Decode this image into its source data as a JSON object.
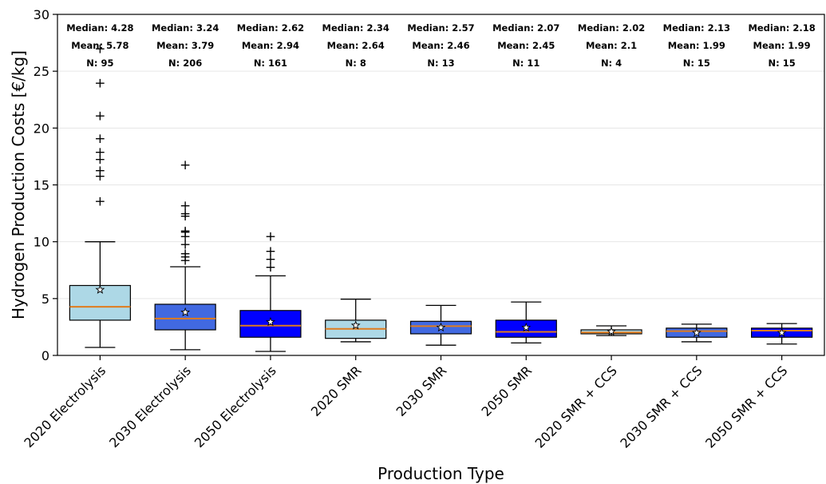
{
  "chart_data": {
    "type": "box",
    "title": "",
    "xlabel": "Production Type",
    "ylabel": "Hydrogen Production Costs [€/kg]",
    "ylim": [
      0,
      30
    ],
    "yticks": [
      0,
      5,
      10,
      15,
      20,
      25,
      30
    ],
    "grid": "horizontal",
    "stat_prefixes": {
      "median": "Median: ",
      "mean": "Mean: ",
      "n": "N: "
    },
    "categories": [
      "2020 Electrolysis",
      "2030 Electrolysis",
      "2050 Electrolysis",
      "2020 SMR",
      "2030 SMR",
      "2050 SMR",
      "2020 SMR + CCS",
      "2030 SMR + CCS",
      "2050 SMR + CCS"
    ],
    "colors": [
      "#add8e6",
      "#4169e1",
      "#0000ff",
      "#add8e6",
      "#4169e1",
      "#0000ff",
      "#add8e6",
      "#4169e1",
      "#0000ff"
    ],
    "median_color": "#e07b1d",
    "boxes": [
      {
        "median": 4.28,
        "mean": 5.78,
        "n": 95,
        "q1": 3.1,
        "q3": 6.15,
        "whisker_low": 0.7,
        "whisker_high": 10.0,
        "outliers": [
          13.6,
          15.8,
          16.3,
          17.3,
          17.9,
          19.1,
          21.1,
          24.0,
          27.0
        ]
      },
      {
        "median": 3.24,
        "mean": 3.79,
        "n": 206,
        "q1": 2.25,
        "q3": 4.5,
        "whisker_low": 0.5,
        "whisker_high": 7.8,
        "outliers": [
          8.4,
          8.7,
          9.0,
          9.8,
          10.5,
          10.9,
          11.0,
          12.3,
          12.5,
          13.2,
          16.8
        ]
      },
      {
        "median": 2.62,
        "mean": 2.94,
        "n": 161,
        "q1": 1.6,
        "q3": 3.95,
        "whisker_low": 0.35,
        "whisker_high": 7.0,
        "outliers": [
          7.8,
          8.5,
          9.2,
          10.5
        ]
      },
      {
        "median": 2.34,
        "mean": 2.64,
        "n": 8,
        "q1": 1.5,
        "q3": 3.1,
        "whisker_low": 1.2,
        "whisker_high": 4.95,
        "outliers": []
      },
      {
        "median": 2.57,
        "mean": 2.46,
        "n": 13,
        "q1": 1.9,
        "q3": 3.0,
        "whisker_low": 0.9,
        "whisker_high": 4.4,
        "outliers": []
      },
      {
        "median": 2.07,
        "mean": 2.45,
        "n": 11,
        "q1": 1.6,
        "q3": 3.1,
        "whisker_low": 1.1,
        "whisker_high": 4.7,
        "outliers": []
      },
      {
        "median": 2.02,
        "mean": 2.1,
        "n": 4,
        "q1": 1.9,
        "q3": 2.25,
        "whisker_low": 1.75,
        "whisker_high": 2.6,
        "outliers": []
      },
      {
        "median": 2.13,
        "mean": 1.99,
        "n": 15,
        "q1": 1.6,
        "q3": 2.4,
        "whisker_low": 1.2,
        "whisker_high": 2.75,
        "outliers": []
      },
      {
        "median": 2.18,
        "mean": 1.99,
        "n": 15,
        "q1": 1.6,
        "q3": 2.4,
        "whisker_low": 1.0,
        "whisker_high": 2.8,
        "outliers": []
      }
    ]
  }
}
